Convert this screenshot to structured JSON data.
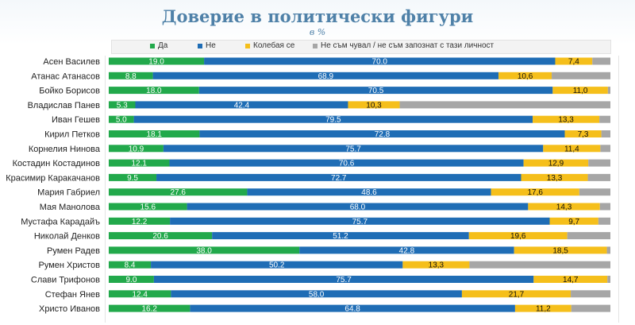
{
  "chart_data": {
    "type": "bar",
    "orientation": "horizontal",
    "stacked": true,
    "normalized_percent": true,
    "title": "Доверие в политически фигури",
    "subtitle": "в %",
    "legend_position": "top",
    "categories": [
      "Асен Василев",
      "Атанас Атанасов",
      "Бойко Борисов",
      "Владислав Панев",
      "Иван Гешев",
      "Кирил Петков",
      "Корнелия Нинова",
      "Костадин Костадинов",
      "Красимир Каракачанов",
      "Мария Габриел",
      "Мая Манолова",
      "Мустафа Карадайъ",
      "Николай Денков",
      "Румен Радев",
      "Румен Христов",
      "Слави Трифонов",
      "Стефан Янев",
      "Христо Иванов"
    ],
    "series": [
      {
        "name": "Да",
        "color": "#22a94b",
        "values": [
          19.0,
          8.8,
          18.0,
          5.3,
          5.0,
          18.1,
          10.9,
          12.1,
          9.5,
          27.6,
          15.6,
          12.2,
          20.6,
          38.0,
          8.4,
          9.0,
          12.4,
          16.2
        ],
        "labels": [
          "19.0",
          "8.8",
          "18.0",
          "5.3",
          "5.0",
          "18.1",
          "10.9",
          "12.1",
          "9.5",
          "27.6",
          "15.6",
          "12.2",
          "20.6",
          "38.0",
          "8.4",
          "9.0",
          "12.4",
          "16.2"
        ]
      },
      {
        "name": "Не",
        "color": "#1f6db5",
        "values": [
          70.0,
          68.9,
          70.5,
          42.4,
          79.5,
          72.8,
          75.7,
          70.6,
          72.7,
          48.6,
          68.0,
          75.7,
          51.2,
          42.8,
          50.2,
          75.7,
          58.0,
          64.8
        ],
        "labels": [
          "70.0",
          "68.9",
          "70.5",
          "42.4",
          "79.5",
          "72.8",
          "75.7",
          "70.6",
          "72.7",
          "48.6",
          "68.0",
          "75.7",
          "51.2",
          "42.8",
          "50.2",
          "75.7",
          "58.0",
          "64.8"
        ]
      },
      {
        "name": "Колебая се",
        "color": "#f5bf1b",
        "values": [
          7.4,
          10.6,
          11.0,
          10.3,
          13.3,
          7.3,
          11.4,
          12.9,
          13.3,
          17.6,
          14.3,
          9.7,
          19.6,
          18.5,
          13.3,
          14.7,
          21.7,
          11.2
        ],
        "labels": [
          "7,4",
          "10,6",
          "11,0",
          "10,3",
          "13,3",
          "7,3",
          "11,4",
          "12,9",
          "13,3",
          "17,6",
          "14,3",
          "9,7",
          "19,6",
          "18,5",
          "13,3",
          "14,7",
          "21,7",
          "11,2"
        ]
      },
      {
        "name": "Не съм чувал / не съм запознат с тази личност",
        "color": "#a6a6a6",
        "values": [
          3.6,
          11.7,
          0.5,
          42.0,
          2.2,
          1.8,
          2.0,
          4.4,
          4.5,
          6.2,
          2.1,
          2.4,
          8.6,
          0.7,
          28.1,
          0.6,
          7.9,
          7.8
        ],
        "labels": [
          "",
          "",
          "",
          "",
          "",
          "",
          "",
          "",
          "",
          "",
          "",
          "",
          "",
          "",
          "",
          "",
          "",
          ""
        ]
      }
    ]
  }
}
